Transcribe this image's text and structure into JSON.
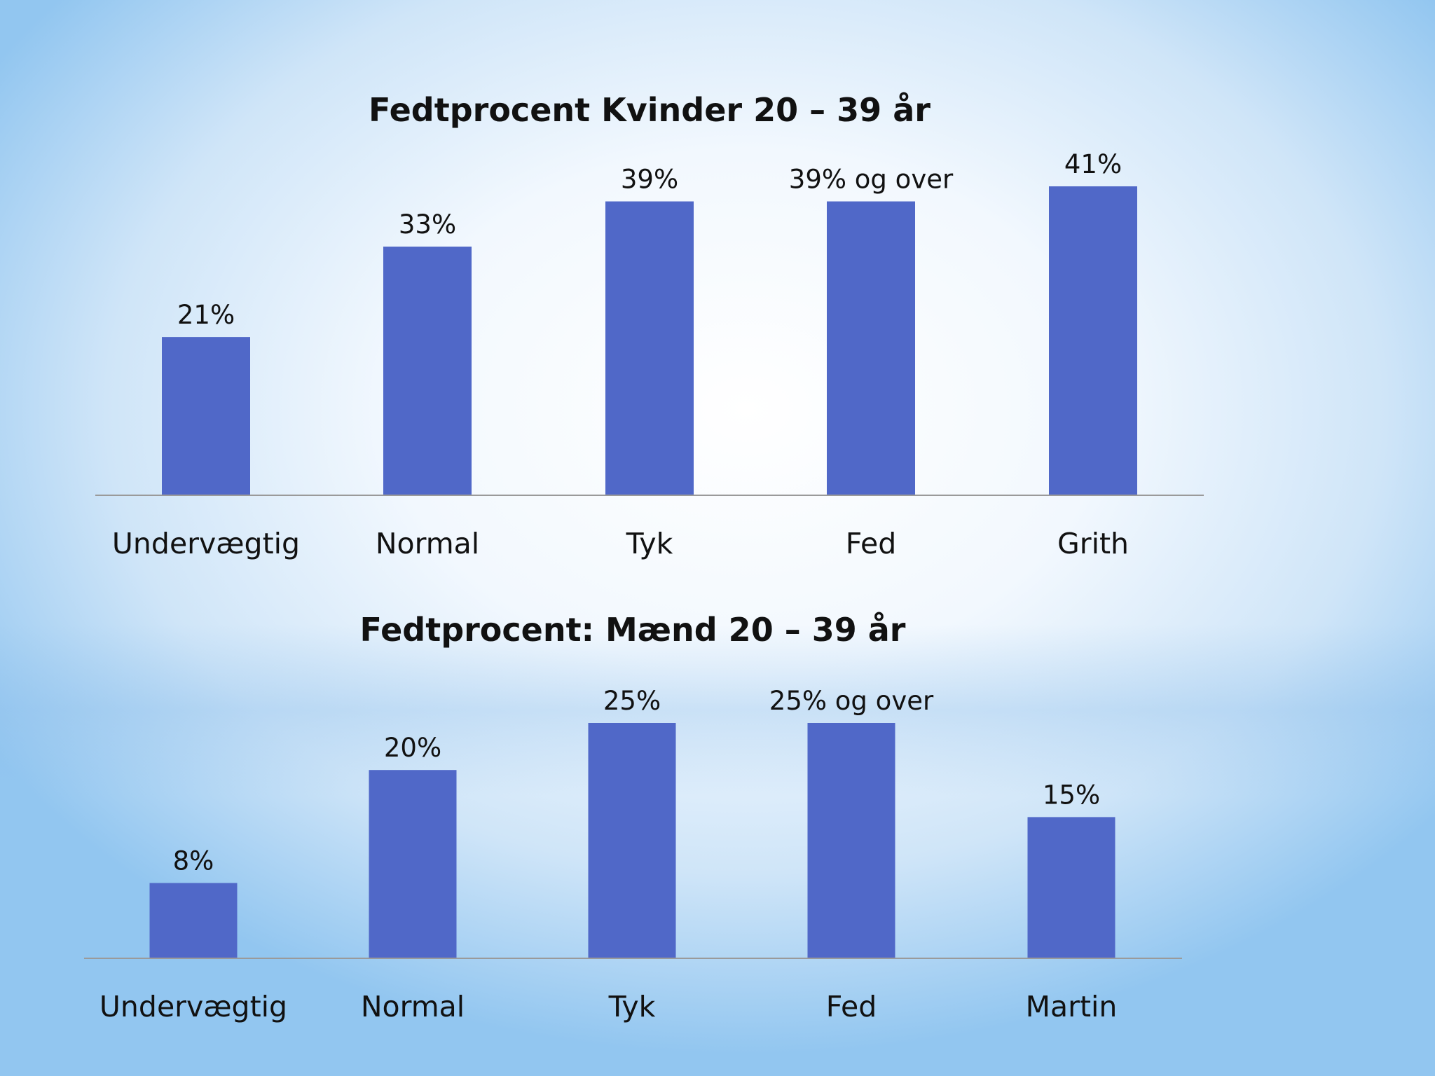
{
  "chart_data": [
    {
      "type": "bar",
      "title": "Fedtprocent Kvinder 20 – 39 år",
      "categories": [
        "Undervægtig",
        "Normal",
        "Tyk",
        "Fed",
        "Grith"
      ],
      "values": [
        21,
        33,
        39,
        39,
        41
      ],
      "data_labels": [
        "21%",
        "33%",
        "39%",
        "39% og over",
        "41%"
      ],
      "xlabel": "",
      "ylabel": "",
      "ylim": [
        0,
        41
      ],
      "grid": false,
      "legend": "none",
      "bar_color": "#5068c8"
    },
    {
      "type": "bar",
      "title": "Fedtprocent: Mænd 20 – 39 år",
      "categories": [
        "Undervægtig",
        "Normal",
        "Tyk",
        "Fed",
        "Martin"
      ],
      "values": [
        8,
        20,
        25,
        25,
        15
      ],
      "data_labels": [
        "8%",
        "20%",
        "25%",
        "25% og over",
        "15%"
      ],
      "xlabel": "",
      "ylabel": "",
      "ylim": [
        0,
        25
      ],
      "grid": false,
      "legend": "none",
      "bar_color": "#5068c8"
    }
  ],
  "colors": {
    "axis": "#9a9a9a",
    "text": "#111111"
  }
}
